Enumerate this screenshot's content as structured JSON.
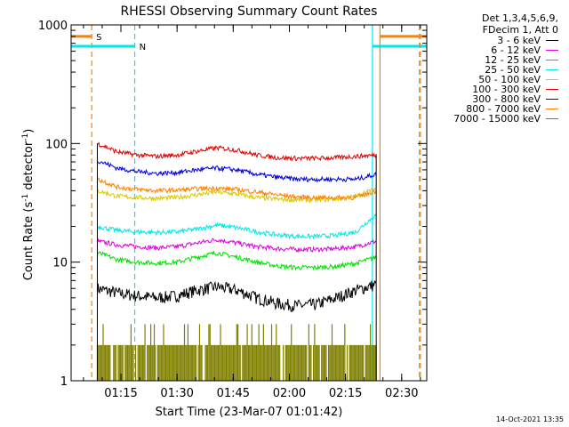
{
  "chart_data": {
    "type": "line",
    "title": "RHESSI Observing Summary Count Rates",
    "xlabel": "Start Time (23-Mar-07 01:01:42)",
    "ylabel_main": "Count Rate (s",
    "ylabel_sup1": "-1",
    "ylabel_mid": " detector",
    "ylabel_sup2": "-1",
    "ylabel_end": ")",
    "yscale": "log",
    "ylim": [
      1,
      1000
    ],
    "xlim_minutes": [
      0,
      95
    ],
    "x_ticks": [
      "01:15",
      "01:30",
      "01:45",
      "02:00",
      "02:15",
      "02:30"
    ],
    "x_tick_minutes": [
      13.3,
      28.3,
      43.3,
      58.3,
      73.3,
      88.3
    ],
    "y_ticks": [
      "1",
      "10",
      "100",
      "1000"
    ],
    "y_tick_values": [
      1,
      10,
      100,
      1000
    ],
    "data_range_minutes": [
      7,
      81.5
    ],
    "legend_header": [
      "Det 1,3,4,5,6,9,",
      "FDecim 1, Att 0"
    ],
    "series": [
      {
        "name": "3 - 6 keV",
        "color": "#000000",
        "values": [
          6,
          5.5,
          5.2,
          5.0,
          5.2,
          5.8,
          6.2,
          5.8,
          5.0,
          4.5,
          4.3,
          4.4,
          5.0,
          5.8,
          6.5
        ]
      },
      {
        "name": "6 - 12 keV",
        "color": "#e000e0",
        "values": [
          15,
          14,
          13.5,
          13.2,
          13.5,
          14.5,
          15.5,
          14.5,
          13.5,
          13,
          12.8,
          12.8,
          13,
          13.5,
          15
        ]
      },
      {
        "name": "12 - 25 keV",
        "color": "#00e000",
        "values": [
          12,
          10.5,
          10,
          9.8,
          10,
          11,
          12,
          11,
          10,
          9.3,
          9,
          9,
          9.2,
          9.8,
          11
        ]
      },
      {
        "name": "25 - 50 keV",
        "color": "#00e8e8",
        "values": [
          20,
          18.5,
          18,
          17.8,
          18,
          19,
          20.5,
          19.5,
          18,
          17,
          16.5,
          16.5,
          16.8,
          18,
          25
        ]
      },
      {
        "name": "50 - 100 keV",
        "color": "#d8c800",
        "values": [
          40,
          36,
          35,
          34.5,
          35,
          37,
          39,
          37.5,
          35,
          34,
          33.5,
          33.5,
          34,
          36,
          42
        ]
      },
      {
        "name": "100 - 300 keV",
        "color": "#e00000",
        "values": [
          100,
          85,
          80,
          78,
          80,
          86,
          92,
          88,
          80,
          76,
          75,
          75,
          76,
          78,
          80
        ]
      },
      {
        "name": "300 - 800 keV",
        "color": "#0000e0",
        "values": [
          72,
          62,
          58,
          56,
          57,
          60,
          62,
          60,
          55,
          52,
          50,
          50,
          50,
          50,
          55
        ]
      },
      {
        "name": "800 - 7000 keV",
        "color": "#ff8000",
        "values": [
          50,
          43,
          41,
          40,
          40.5,
          41.5,
          42,
          41,
          39,
          37,
          35.5,
          35,
          35,
          35,
          40
        ]
      },
      {
        "name": "7000 - 15000 keV",
        "color": "#808000",
        "values": [
          2,
          2,
          2,
          2,
          2,
          2,
          2.5,
          2,
          2,
          2,
          2,
          2,
          2,
          2,
          2
        ]
      }
    ],
    "annotations": [
      {
        "label": "S",
        "color": "#ff8000",
        "bar_y": 800,
        "bar_x_minutes": [
          0,
          5.5
        ],
        "vline_minutes": 5.5,
        "vline_style": "dashed"
      },
      {
        "label": "N",
        "color": "#00e8e8",
        "bar_y": 660,
        "bar_x_minutes": [
          0,
          17
        ],
        "vline_minutes": 17,
        "vline_style": "dashed"
      },
      {
        "label": "",
        "color": "#00e8e8",
        "bar_y": 660,
        "bar_x_minutes": [
          80.5,
          95
        ],
        "vline_minutes": 80.5,
        "vline_style": "solid"
      },
      {
        "label": "",
        "color": "#ff8000",
        "bar_y": 800,
        "bar_x_minutes": [
          82.5,
          95
        ],
        "vline_minutes": 82.5,
        "vline_style": "solid"
      },
      {
        "label": "",
        "color": "#00e8e8",
        "vline_minutes": 93,
        "vline_style": "dashed"
      },
      {
        "label": "",
        "color": "#ff8000",
        "vline_minutes": 93.3,
        "vline_style": "dashed"
      }
    ],
    "grid": false
  },
  "footer_date": "14-Oct-2021 13:35"
}
